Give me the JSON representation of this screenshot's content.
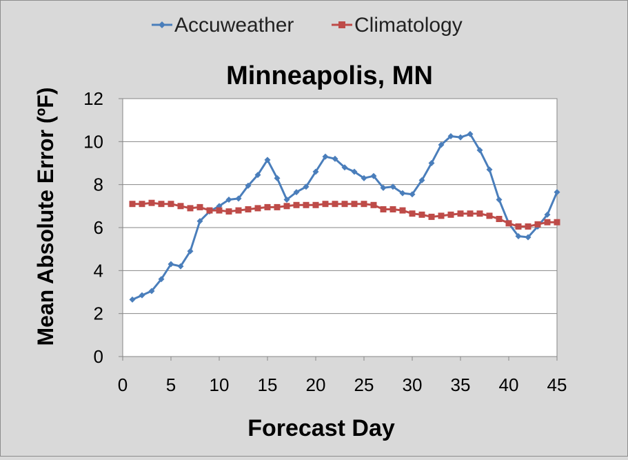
{
  "chart_data": {
    "type": "line",
    "title": "Minneapolis, MN",
    "xlabel": "Forecast Day",
    "ylabel": "Mean Absolute Error (ºF)",
    "xlim": [
      0,
      45
    ],
    "ylim": [
      0,
      12
    ],
    "xticks": [
      0,
      5,
      10,
      15,
      20,
      25,
      30,
      35,
      40,
      45
    ],
    "yticks": [
      0,
      2,
      4,
      6,
      8,
      10,
      12
    ],
    "grid": "horizontal",
    "legend_position": "top",
    "x": [
      1,
      2,
      3,
      4,
      5,
      6,
      7,
      8,
      9,
      10,
      11,
      12,
      13,
      14,
      15,
      16,
      17,
      18,
      19,
      20,
      21,
      22,
      23,
      24,
      25,
      26,
      27,
      28,
      29,
      30,
      31,
      32,
      33,
      34,
      35,
      36,
      37,
      38,
      39,
      40,
      41,
      42,
      43,
      44,
      45
    ],
    "series": [
      {
        "name": "Accuweather",
        "color": "#4a7ebb",
        "marker": "diamond",
        "values": [
          2.65,
          2.85,
          3.05,
          3.6,
          4.3,
          4.2,
          4.9,
          6.3,
          6.75,
          7.0,
          7.3,
          7.35,
          7.95,
          8.45,
          9.15,
          8.3,
          7.3,
          7.65,
          7.9,
          8.6,
          9.3,
          9.2,
          8.8,
          8.6,
          8.3,
          8.4,
          7.85,
          7.9,
          7.6,
          7.55,
          8.2,
          9.0,
          9.85,
          10.25,
          10.2,
          10.35,
          9.6,
          8.7,
          7.3,
          6.2,
          5.6,
          5.55,
          6.05,
          6.6,
          7.65
        ]
      },
      {
        "name": "Climatology",
        "color": "#be4b48",
        "marker": "square",
        "values": [
          7.1,
          7.1,
          7.15,
          7.1,
          7.1,
          7.0,
          6.9,
          6.95,
          6.8,
          6.8,
          6.75,
          6.8,
          6.85,
          6.9,
          6.95,
          6.95,
          7.0,
          7.05,
          7.05,
          7.05,
          7.1,
          7.1,
          7.1,
          7.1,
          7.1,
          7.05,
          6.85,
          6.85,
          6.8,
          6.65,
          6.6,
          6.5,
          6.55,
          6.6,
          6.65,
          6.65,
          6.65,
          6.55,
          6.4,
          6.2,
          6.05,
          6.05,
          6.15,
          6.25,
          6.25
        ]
      }
    ]
  }
}
